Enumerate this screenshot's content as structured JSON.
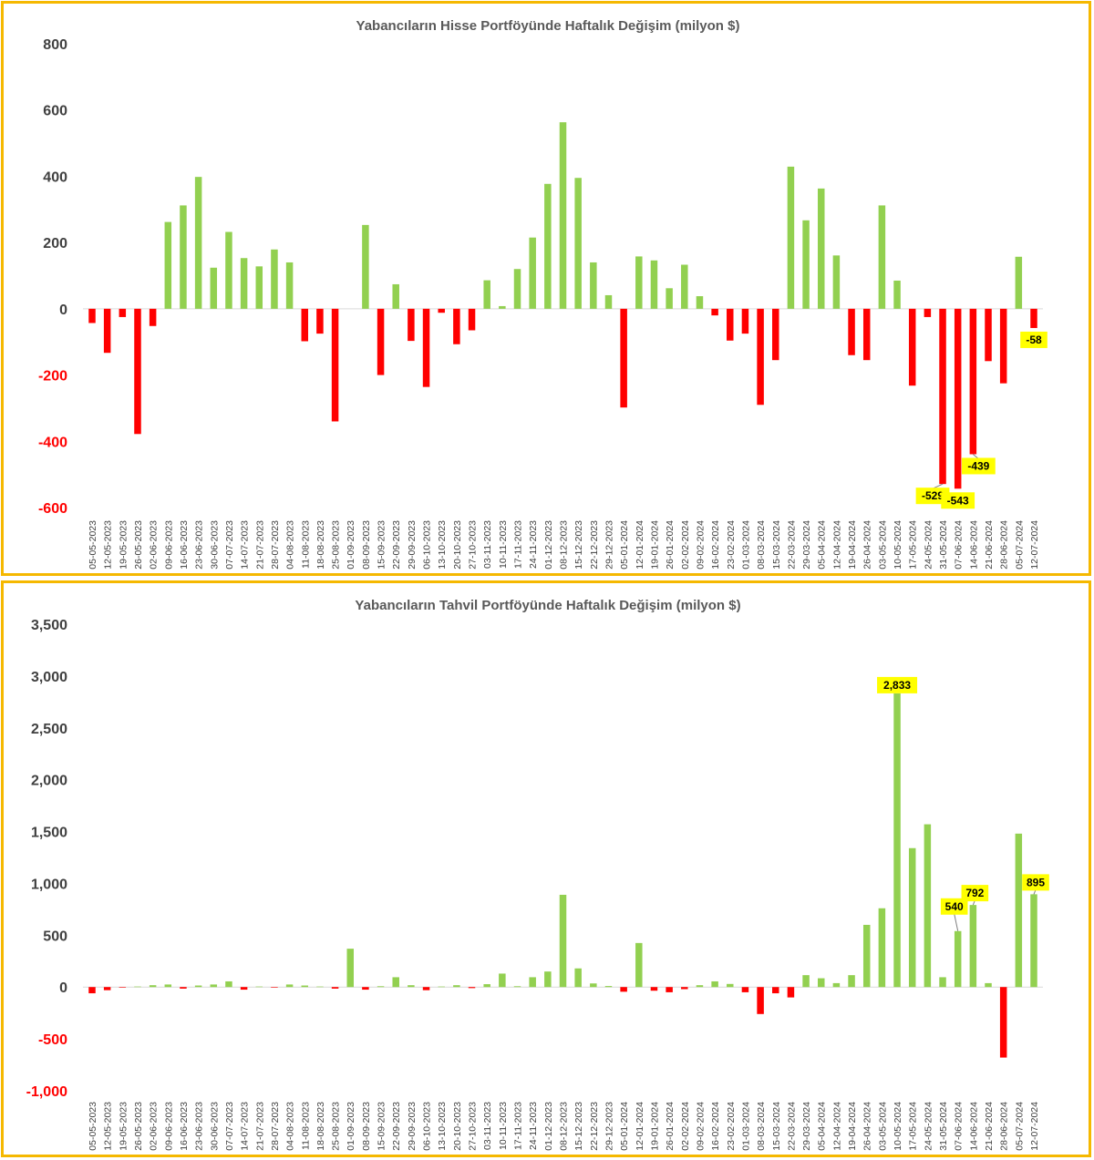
{
  "colors": {
    "positive": "#92d050",
    "negative": "#ff0000",
    "label_bg": "#ffff00",
    "border": "#f5b800",
    "pos_tick": "#404040",
    "neg_tick": "#ff0000"
  },
  "chart_data": [
    {
      "type": "bar",
      "title": "Yabancıların Hisse Portföyünde Haftalık Değişim (milyon $)",
      "ylim": [
        -600,
        800
      ],
      "yticks": [
        "800",
        "600",
        "400",
        "200",
        "0",
        "-200",
        "-400",
        "-600"
      ],
      "ytick_values": [
        800,
        600,
        400,
        200,
        0,
        -200,
        -400,
        -600
      ],
      "grid": false,
      "categories": [
        "05-05-2023",
        "12-05-2023",
        "19-05-2023",
        "26-05-2023",
        "02-06-2023",
        "09-06-2023",
        "16-06-2023",
        "23-06-2023",
        "30-06-2023",
        "07-07-2023",
        "14-07-2023",
        "21-07-2023",
        "28-07-2023",
        "04-08-2023",
        "11-08-2023",
        "18-08-2023",
        "25-08-2023",
        "01-09-2023",
        "08-09-2023",
        "15-09-2023",
        "22-09-2023",
        "29-09-2023",
        "06-10-2023",
        "13-10-2023",
        "20-10-2023",
        "27-10-2023",
        "03-11-2023",
        "10-11-2023",
        "17-11-2023",
        "24-11-2023",
        "01-12-2023",
        "08-12-2023",
        "15-12-2023",
        "22-12-2023",
        "29-12-2023",
        "05-01-2024",
        "12-01-2024",
        "19-01-2024",
        "26-01-2024",
        "02-02-2024",
        "09-02-2024",
        "16-02-2024",
        "23-02-2024",
        "01-03-2024",
        "08-03-2024",
        "15-03-2024",
        "22-03-2024",
        "29-03-2024",
        "05-04-2024",
        "12-04-2024",
        "19-04-2024",
        "26-04-2024",
        "03-05-2024",
        "10-05-2024",
        "17-05-2024",
        "24-05-2024",
        "31-05-2024",
        "07-06-2024",
        "14-06-2024",
        "21-06-2024",
        "28-06-2024",
        "05-07-2024",
        "12-07-2024"
      ],
      "values": [
        -43,
        -133,
        -25,
        -378,
        -52,
        262,
        312,
        398,
        124,
        232,
        153,
        128,
        179,
        140,
        -98,
        -75,
        -340,
        0,
        253,
        -200,
        74,
        -97,
        -236,
        -12,
        -107,
        -65,
        86,
        8,
        120,
        215,
        377,
        563,
        395,
        140,
        41,
        -298,
        158,
        146,
        62,
        133,
        38,
        -20,
        -96,
        -75,
        -290,
        -155,
        429,
        267,
        363,
        161,
        -140,
        -155,
        312,
        85,
        -232,
        -25,
        -529,
        -543,
        -439,
        -158,
        -225,
        157,
        -58
      ],
      "data_labels": [
        {
          "index": 56,
          "text": "-529"
        },
        {
          "index": 57,
          "text": "-543"
        },
        {
          "index": 58,
          "text": "-439"
        },
        {
          "index": 62,
          "text": "-58"
        }
      ]
    },
    {
      "type": "bar",
      "title": "Yabancıların Tahvil Portföyünde Haftalık Değişim (milyon $)",
      "ylim": [
        -1000,
        3500
      ],
      "yticks": [
        "3,500",
        "3,000",
        "2,500",
        "2,000",
        "1,500",
        "1,000",
        "500",
        "0",
        "-500",
        "-1,000"
      ],
      "ytick_values": [
        3500,
        3000,
        2500,
        2000,
        1500,
        1000,
        500,
        0,
        -500,
        -1000
      ],
      "grid": false,
      "categories": [
        "05-05-2023",
        "12-05-2023",
        "19-05-2023",
        "26-05-2023",
        "02-06-2023",
        "09-06-2023",
        "16-06-2023",
        "23-06-2023",
        "30-06-2023",
        "07-07-2023",
        "14-07-2023",
        "21-07-2023",
        "28-07-2023",
        "04-08-2023",
        "11-08-2023",
        "18-08-2023",
        "25-08-2023",
        "01-09-2023",
        "08-09-2023",
        "15-09-2023",
        "22-09-2023",
        "29-09-2023",
        "06-10-2023",
        "13-10-2023",
        "20-10-2023",
        "27-10-2023",
        "03-11-2023",
        "10-11-2023",
        "17-11-2023",
        "24-11-2023",
        "01-12-2023",
        "08-12-2023",
        "15-12-2023",
        "22-12-2023",
        "29-12-2023",
        "05-01-2024",
        "12-01-2024",
        "19-01-2024",
        "26-01-2024",
        "02-02-2024",
        "09-02-2024",
        "16-02-2024",
        "23-02-2024",
        "01-03-2024",
        "08-03-2024",
        "15-03-2024",
        "22-03-2024",
        "29-03-2024",
        "05-04-2024",
        "12-04-2024",
        "19-04-2024",
        "26-04-2024",
        "03-05-2024",
        "10-05-2024",
        "17-05-2024",
        "24-05-2024",
        "31-05-2024",
        "07-06-2024",
        "14-06-2024",
        "21-06-2024",
        "28-06-2024",
        "05-07-2024",
        "12-07-2024"
      ],
      "values": [
        -60,
        -30,
        -3,
        5,
        18,
        25,
        -15,
        15,
        25,
        55,
        -25,
        5,
        -5,
        25,
        15,
        5,
        -15,
        370,
        -25,
        8,
        95,
        18,
        -30,
        5,
        18,
        -10,
        28,
        130,
        8,
        95,
        150,
        890,
        180,
        35,
        10,
        -45,
        425,
        -35,
        -50,
        -20,
        18,
        55,
        30,
        -50,
        -260,
        -60,
        -100,
        115,
        85,
        38,
        115,
        600,
        760,
        2833,
        1340,
        1570,
        95,
        540,
        792,
        38,
        -680,
        1480,
        895
      ],
      "data_labels": [
        {
          "index": 53,
          "text": "2,833"
        },
        {
          "index": 57,
          "text": "540"
        },
        {
          "index": 58,
          "text": "792"
        },
        {
          "index": 62,
          "text": "895"
        }
      ]
    }
  ]
}
